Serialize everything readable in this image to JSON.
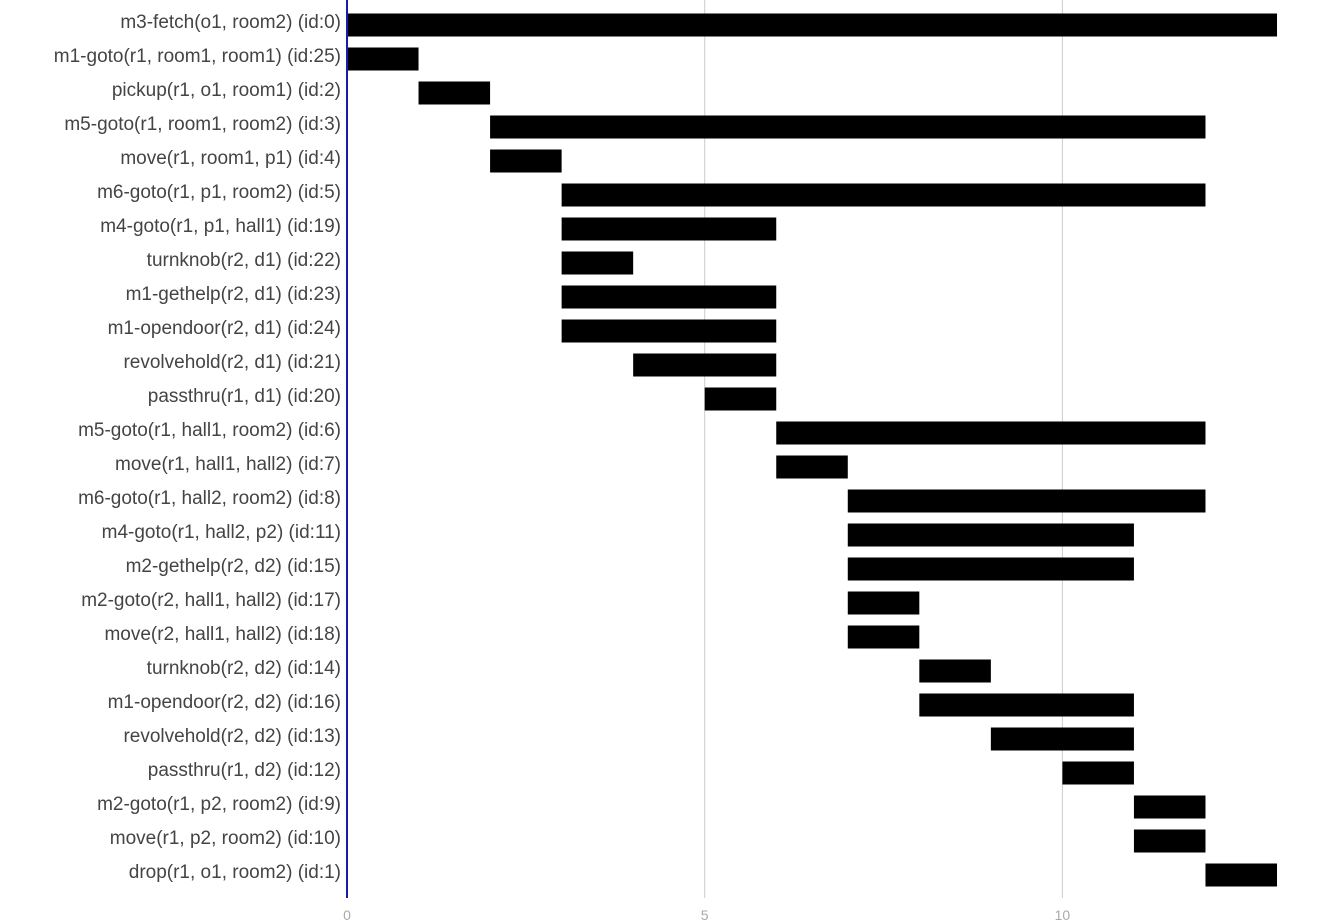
{
  "chart_data": {
    "type": "gantt",
    "title": "",
    "xlabel": "",
    "ylabel": "",
    "xlim": [
      0,
      13
    ],
    "x_ticks": [
      0,
      5,
      10
    ],
    "x_tick_labels": [
      "0",
      "5",
      "10"
    ],
    "grid": true,
    "legend": "none",
    "bar_color": "#000000",
    "axis_color": "#1a1aa6",
    "tasks": [
      {
        "label": "m3-fetch(o1, room2) (id:0)",
        "start": 0,
        "end": 13
      },
      {
        "label": "m1-goto(r1, room1, room1) (id:25)",
        "start": 0,
        "end": 1
      },
      {
        "label": "pickup(r1, o1, room1) (id:2)",
        "start": 1,
        "end": 2
      },
      {
        "label": "m5-goto(r1, room1, room2) (id:3)",
        "start": 2,
        "end": 12
      },
      {
        "label": "move(r1, room1, p1) (id:4)",
        "start": 2,
        "end": 3
      },
      {
        "label": "m6-goto(r1, p1, room2) (id:5)",
        "start": 3,
        "end": 12
      },
      {
        "label": "m4-goto(r1, p1, hall1) (id:19)",
        "start": 3,
        "end": 6
      },
      {
        "label": "turnknob(r2, d1) (id:22)",
        "start": 3,
        "end": 4
      },
      {
        "label": "m1-gethelp(r2, d1) (id:23)",
        "start": 3,
        "end": 6
      },
      {
        "label": "m1-opendoor(r2, d1) (id:24)",
        "start": 3,
        "end": 6
      },
      {
        "label": "revolvehold(r2, d1) (id:21)",
        "start": 4,
        "end": 6
      },
      {
        "label": "passthru(r1, d1) (id:20)",
        "start": 5,
        "end": 6
      },
      {
        "label": "m5-goto(r1, hall1, room2) (id:6)",
        "start": 6,
        "end": 12
      },
      {
        "label": "move(r1, hall1, hall2) (id:7)",
        "start": 6,
        "end": 7
      },
      {
        "label": "m6-goto(r1, hall2, room2) (id:8)",
        "start": 7,
        "end": 12
      },
      {
        "label": "m4-goto(r1, hall2, p2) (id:11)",
        "start": 7,
        "end": 11
      },
      {
        "label": "m2-gethelp(r2, d2) (id:15)",
        "start": 7,
        "end": 11
      },
      {
        "label": "m2-goto(r2, hall1, hall2) (id:17)",
        "start": 7,
        "end": 8
      },
      {
        "label": "move(r2, hall1, hall2) (id:18)",
        "start": 7,
        "end": 8
      },
      {
        "label": "turnknob(r2, d2) (id:14)",
        "start": 8,
        "end": 9
      },
      {
        "label": "m1-opendoor(r2, d2) (id:16)",
        "start": 8,
        "end": 11
      },
      {
        "label": "revolvehold(r2, d2) (id:13)",
        "start": 9,
        "end": 11
      },
      {
        "label": "passthru(r1, d2) (id:12)",
        "start": 10,
        "end": 11
      },
      {
        "label": "m2-goto(r1, p2, room2) (id:9)",
        "start": 11,
        "end": 12
      },
      {
        "label": "move(r1, p2, room2) (id:10)",
        "start": 11,
        "end": 12
      },
      {
        "label": "drop(r1, o1, room2) (id:1)",
        "start": 12,
        "end": 13
      }
    ]
  }
}
